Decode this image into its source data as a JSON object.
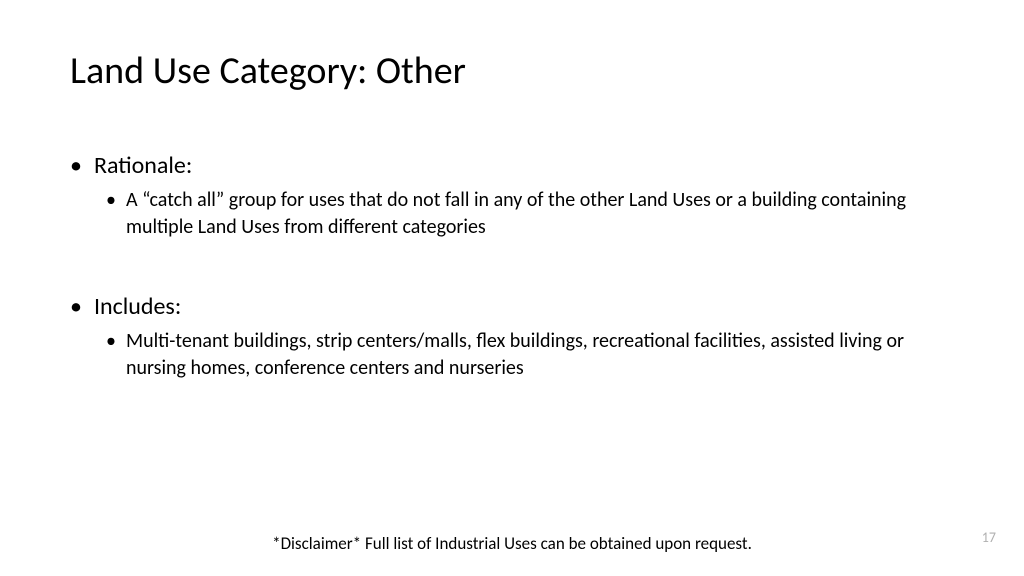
{
  "slide": {
    "title": "Land Use Category: Other",
    "sections": [
      {
        "heading": "Rationale:",
        "body": "A “catch all” group for uses that do not fall in any of the other Land Uses or a building containing multiple Land Uses from different categories"
      },
      {
        "heading": "Includes:",
        "body": "Multi-tenant buildings, strip centers/malls, flex buildings, recreational facilities, assisted living or nursing homes, conference centers and nurseries"
      }
    ],
    "disclaimer": "*Disclaimer* Full list of Industrial Uses can be obtained upon request.",
    "page_number": "17"
  },
  "style": {
    "background_color": "#ffffff",
    "title_fontsize": 38,
    "title_color": "#000000",
    "heading_fontsize": 24,
    "body_fontsize": 20,
    "disclaimer_fontsize": 17,
    "page_number_fontsize": 14,
    "page_number_color": "#b0b0b0",
    "text_color": "#000000",
    "font_family": "Calibri"
  }
}
